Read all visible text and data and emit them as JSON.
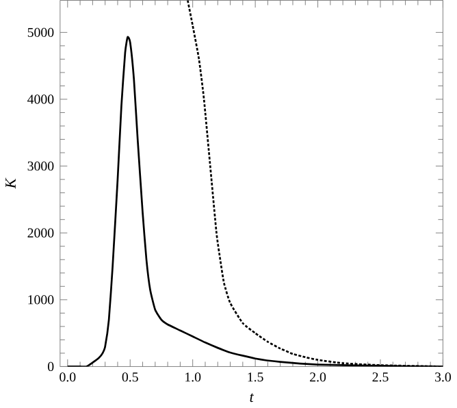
{
  "chart_data": {
    "type": "line",
    "xlabel": "t",
    "ylabel": "K",
    "xlim": [
      -0.06,
      3.0
    ],
    "ylim": [
      0,
      5480
    ],
    "xticks": [
      {
        "value": 0,
        "label": "0.0"
      },
      0.5,
      {
        "value": 1,
        "label": "1.0"
      },
      1.5,
      {
        "value": 2,
        "label": "2.0"
      },
      2.5,
      {
        "value": 3,
        "label": "3.0"
      }
    ],
    "yticks": [
      0,
      1000,
      2000,
      3000,
      4000,
      5000
    ],
    "grid": false,
    "marker": "none",
    "series": [
      {
        "color": "#000000",
        "line_style": "solid",
        "x": [
          0,
          0.1,
          0.15,
          0.2,
          0.25,
          0.28,
          0.3,
          0.33,
          0.36,
          0.4,
          0.43,
          0.46,
          0.48,
          0.5,
          0.53,
          0.56,
          0.6,
          0.63,
          0.66,
          0.7,
          0.75,
          0.8,
          0.9,
          1.0,
          1.1,
          1.2,
          1.3,
          1.5,
          1.7,
          2.0,
          2.5,
          3.0
        ],
        "values": [
          0,
          0,
          0,
          60,
          130,
          200,
          300,
          700,
          1500,
          2800,
          3900,
          4700,
          4930,
          4850,
          4300,
          3400,
          2300,
          1600,
          1150,
          850,
          700,
          630,
          540,
          450,
          360,
          280,
          210,
          120,
          70,
          30,
          10,
          0
        ]
      },
      {
        "color": "#000000",
        "line_style": "dotted",
        "x": [
          0.96,
          1.0,
          1.05,
          1.09,
          1.14,
          1.19,
          1.22,
          1.25,
          1.3,
          1.4,
          1.5,
          1.6,
          1.7,
          1.8,
          1.9,
          2.0,
          2.2,
          2.5,
          3.0
        ],
        "values": [
          5480,
          5100,
          4600,
          4000,
          3000,
          2000,
          1600,
          1250,
          950,
          650,
          500,
          370,
          270,
          190,
          140,
          100,
          50,
          20,
          0
        ]
      }
    ]
  }
}
